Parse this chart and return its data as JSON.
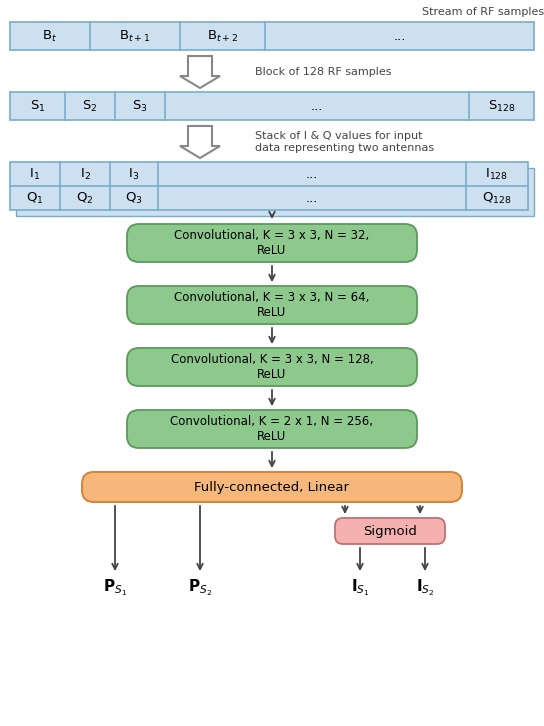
{
  "bg_color": "#ffffff",
  "fig_width": 5.44,
  "fig_height": 7.26,
  "stream_label": "Stream of RF samples",
  "block_label": "Block of 128 RF samples",
  "stack_line1": "Stack of I & Q values for input",
  "stack_line2": "data representing two antennas",
  "conv_layers": [
    "Convolutional, K = 3 x 3, N = 32,\nReLU",
    "Convolutional, K = 3 x 3, N = 64,\nReLU",
    "Convolutional, K = 3 x 3, N = 128,\nReLU",
    "Convolutional, K = 2 x 1, N = 256,\nReLU"
  ],
  "fc_label": "Fully-connected, Linear",
  "sigmoid_label": "Sigmoid",
  "cell_color": "#cce0f0",
  "cell_border": "#7aacca",
  "conv_color": "#8dc88d",
  "conv_border": "#5a9a5a",
  "fc_color": "#f5b87a",
  "fc_border": "#d08840",
  "sigmoid_color": "#f5b0b0",
  "sigmoid_border": "#c07070",
  "arrow_color": "#444444",
  "text_color": "#000000",
  "label_color": "#444444"
}
